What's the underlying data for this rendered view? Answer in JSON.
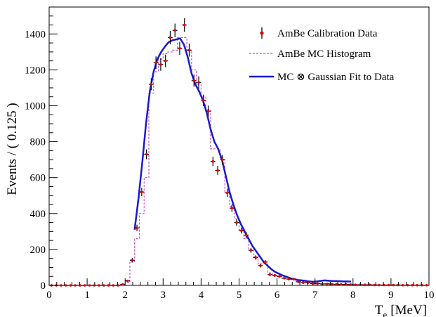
{
  "chart_data": {
    "type": "scatter",
    "xlabel": "T",
    "xlabel_sub": "e",
    "xlabel_unit": "[MeV]",
    "ylabel": "Events / ( 0.125 )",
    "xlim": [
      0,
      10
    ],
    "ylim": [
      0,
      1550
    ],
    "x_ticks": [
      0,
      1,
      2,
      3,
      4,
      5,
      6,
      7,
      8,
      9,
      10
    ],
    "y_ticks": [
      0,
      200,
      400,
      600,
      800,
      1000,
      1200,
      1400
    ],
    "bin_width": 0.125,
    "grid": false,
    "legend_position": "top-right",
    "colors": {
      "data": "#e00000",
      "mc": "#cc44cc",
      "fit": "#1a1acc",
      "axis": "#000000"
    },
    "series": [
      {
        "name": "AmBe Calibration Data",
        "kind": "points_with_errors",
        "x": [
          0.0625,
          0.1875,
          0.3125,
          0.4375,
          0.5625,
          0.6875,
          0.8125,
          0.9375,
          1.0625,
          1.1875,
          1.3125,
          1.4375,
          1.5625,
          1.6875,
          1.8125,
          1.9375,
          2.0625,
          2.1875,
          2.3125,
          2.4375,
          2.5625,
          2.6875,
          2.8125,
          2.9375,
          3.0625,
          3.1875,
          3.3125,
          3.4375,
          3.5625,
          3.6875,
          3.8125,
          3.9375,
          4.0625,
          4.1875,
          4.3125,
          4.4375,
          4.5625,
          4.6875,
          4.8125,
          4.9375,
          5.0625,
          5.1875,
          5.3125,
          5.4375,
          5.5625,
          5.6875,
          5.8125,
          5.9375,
          6.0625,
          6.1875,
          6.3125,
          6.4375,
          6.5625,
          6.6875,
          6.8125,
          6.9375,
          7.0625,
          7.1875,
          7.3125,
          7.4375,
          7.5625,
          7.6875,
          7.8125,
          7.9375,
          8.0625,
          8.1875,
          8.3125,
          8.4375,
          8.5625,
          8.6875,
          8.8125,
          8.9375,
          9.0625,
          9.1875,
          9.3125,
          9.4375,
          9.5625,
          9.6875,
          9.8125,
          9.9375
        ],
        "y": [
          0,
          0,
          0,
          0,
          0,
          0,
          0,
          0,
          0,
          0,
          0,
          0,
          0,
          0,
          0,
          5,
          25,
          140,
          320,
          520,
          730,
          1120,
          1240,
          1230,
          1250,
          1380,
          1420,
          1320,
          1450,
          1310,
          1140,
          1130,
          1030,
          970,
          690,
          640,
          700,
          515,
          430,
          350,
          305,
          280,
          195,
          155,
          110,
          130,
          60,
          55,
          50,
          40,
          35,
          35,
          20,
          15,
          15,
          10,
          10,
          8,
          8,
          7,
          6,
          5,
          5,
          4,
          3,
          3,
          3,
          3,
          2,
          2,
          2,
          2,
          2,
          2,
          1,
          1,
          1,
          1,
          1,
          1
        ],
        "err": [
          0,
          0,
          0,
          0,
          0,
          0,
          0,
          0,
          0,
          0,
          0,
          0,
          0,
          0,
          0,
          2,
          5,
          12,
          18,
          23,
          27,
          33,
          35,
          35,
          35,
          37,
          38,
          36,
          38,
          36,
          34,
          34,
          32,
          31,
          26,
          25,
          26,
          23,
          21,
          19,
          17,
          17,
          14,
          12,
          10,
          11,
          8,
          7,
          7,
          6,
          6,
          6,
          4,
          4,
          4,
          3,
          3,
          3,
          3,
          3,
          2,
          2,
          2,
          2,
          2,
          2,
          2,
          2,
          1,
          1,
          1,
          1,
          1,
          1,
          1,
          1,
          1,
          1,
          1,
          1
        ]
      },
      {
        "name": "AmBe MC Histogram",
        "kind": "step",
        "x": [
          0.0625,
          0.1875,
          0.3125,
          0.4375,
          0.5625,
          0.6875,
          0.8125,
          0.9375,
          1.0625,
          1.1875,
          1.3125,
          1.4375,
          1.5625,
          1.6875,
          1.8125,
          1.9375,
          2.0625,
          2.1875,
          2.3125,
          2.4375,
          2.5625,
          2.6875,
          2.8125,
          2.9375,
          3.0625,
          3.1875,
          3.3125,
          3.4375,
          3.5625,
          3.6875,
          3.8125,
          3.9375,
          4.0625,
          4.1875,
          4.3125,
          4.4375,
          4.5625,
          4.6875,
          4.8125,
          4.9375,
          5.0625,
          5.1875,
          5.3125,
          5.4375,
          5.5625,
          5.6875,
          5.8125,
          5.9375,
          6.0625,
          6.1875,
          6.3125,
          6.4375,
          6.5625,
          6.6875,
          6.8125,
          6.9375,
          7.0625,
          7.1875,
          7.3125,
          7.4375,
          7.5625,
          7.6875,
          7.8125,
          7.9375,
          8.0625,
          8.1875,
          8.3125,
          8.4375,
          8.5625,
          8.6875,
          8.8125,
          8.9375,
          9.0625,
          9.1875,
          9.3125,
          9.4375,
          9.5625,
          9.6875,
          9.8125,
          9.9375
        ],
        "y": [
          0,
          0,
          0,
          0,
          0,
          0,
          0,
          0,
          0,
          0,
          0,
          0,
          0,
          0,
          0,
          5,
          15,
          130,
          260,
          400,
          600,
          1070,
          1190,
          1260,
          1290,
          1300,
          1310,
          1380,
          1380,
          1310,
          1200,
          1120,
          1050,
          980,
          760,
          760,
          700,
          520,
          440,
          370,
          310,
          260,
          200,
          160,
          120,
          120,
          70,
          60,
          50,
          40,
          35,
          30,
          25,
          20,
          17,
          14,
          12,
          10,
          9,
          8,
          7,
          6,
          5,
          5,
          4,
          4,
          3,
          3,
          3,
          2,
          2,
          2,
          2,
          2,
          1,
          1,
          1,
          1,
          1,
          1
        ]
      },
      {
        "name": "MC ⊗ Gaussian Fit to Data",
        "kind": "curve",
        "x": [
          2.25,
          2.35,
          2.45,
          2.55,
          2.65,
          2.75,
          2.85,
          2.95,
          3.05,
          3.15,
          3.25,
          3.35,
          3.45,
          3.55,
          3.65,
          3.75,
          3.85,
          3.95,
          4.05,
          4.15,
          4.25,
          4.35,
          4.45,
          4.55,
          4.65,
          4.75,
          4.85,
          4.95,
          5.05,
          5.15,
          5.25,
          5.35,
          5.45,
          5.55,
          5.65,
          5.75,
          5.85,
          5.95,
          6.05,
          6.15,
          6.25,
          6.35,
          6.45,
          6.55,
          6.65,
          6.75,
          6.85,
          6.95,
          7.05,
          7.15,
          7.25,
          7.35,
          7.45,
          7.55,
          7.65,
          7.75,
          7.85,
          7.95
        ],
        "y": [
          310,
          480,
          680,
          900,
          1080,
          1190,
          1260,
          1300,
          1330,
          1355,
          1365,
          1370,
          1375,
          1340,
          1270,
          1180,
          1120,
          1080,
          1030,
          960,
          870,
          800,
          760,
          700,
          610,
          520,
          450,
          390,
          340,
          300,
          260,
          220,
          190,
          160,
          130,
          110,
          90,
          75,
          65,
          55,
          48,
          40,
          35,
          30,
          28,
          25,
          22,
          20,
          22,
          25,
          28,
          26,
          24,
          24,
          23,
          22,
          22,
          21
        ]
      }
    ]
  }
}
